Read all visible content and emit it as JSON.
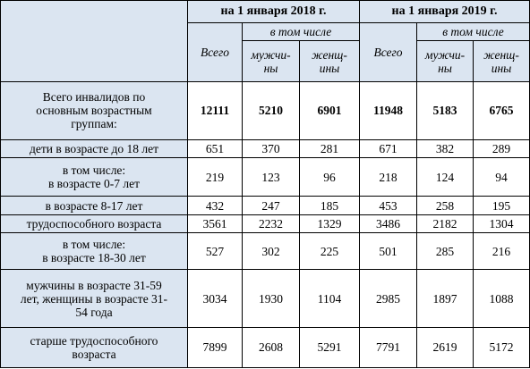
{
  "header": {
    "period_2018": "на 1 января 2018 г.",
    "period_2019": "на 1 января 2019 г.",
    "total": "Всего",
    "including": "в том числе",
    "men_line1": "мужчи-",
    "men_line2": "ны",
    "women_line1": "женщ-",
    "women_line2": "ины"
  },
  "rows": [
    {
      "label_lines": [
        "Всего инвалидов по",
        "основным возрастным",
        "группам:"
      ],
      "values": [
        "12111",
        "5210",
        "6901",
        "11948",
        "5183",
        "6765"
      ],
      "bold": true
    },
    {
      "label_lines": [
        "дети в возрасте до 18 лет"
      ],
      "values": [
        "651",
        "370",
        "281",
        "671",
        "382",
        "289"
      ]
    },
    {
      "label_lines": [
        "в том числе:",
        "в возрасте 0-7 лет"
      ],
      "values": [
        "219",
        "123",
        "96",
        "218",
        "124",
        "94"
      ]
    },
    {
      "label_lines": [
        "в возрасте 8-17 лет"
      ],
      "values": [
        "432",
        "247",
        "185",
        "453",
        "258",
        "195"
      ]
    },
    {
      "label_lines": [
        "трудоспособного возраста"
      ],
      "values": [
        "3561",
        "2232",
        "1329",
        "3486",
        "2182",
        "1304"
      ]
    },
    {
      "label_lines": [
        "в том числе:",
        "в возрасте 18-30 лет"
      ],
      "values": [
        "527",
        "302",
        "225",
        "501",
        "285",
        "216"
      ]
    },
    {
      "label_lines": [
        "мужчины в возрасте 31-59",
        "лет, женщины в возрасте 31-",
        "54 года"
      ],
      "values": [
        "3034",
        "1930",
        "1104",
        "2985",
        "1897",
        "1088"
      ]
    },
    {
      "label_lines": [
        "старше трудоспособного",
        "возраста"
      ],
      "values": [
        "7899",
        "2608",
        "5291",
        "7791",
        "2619",
        "5172"
      ]
    }
  ]
}
